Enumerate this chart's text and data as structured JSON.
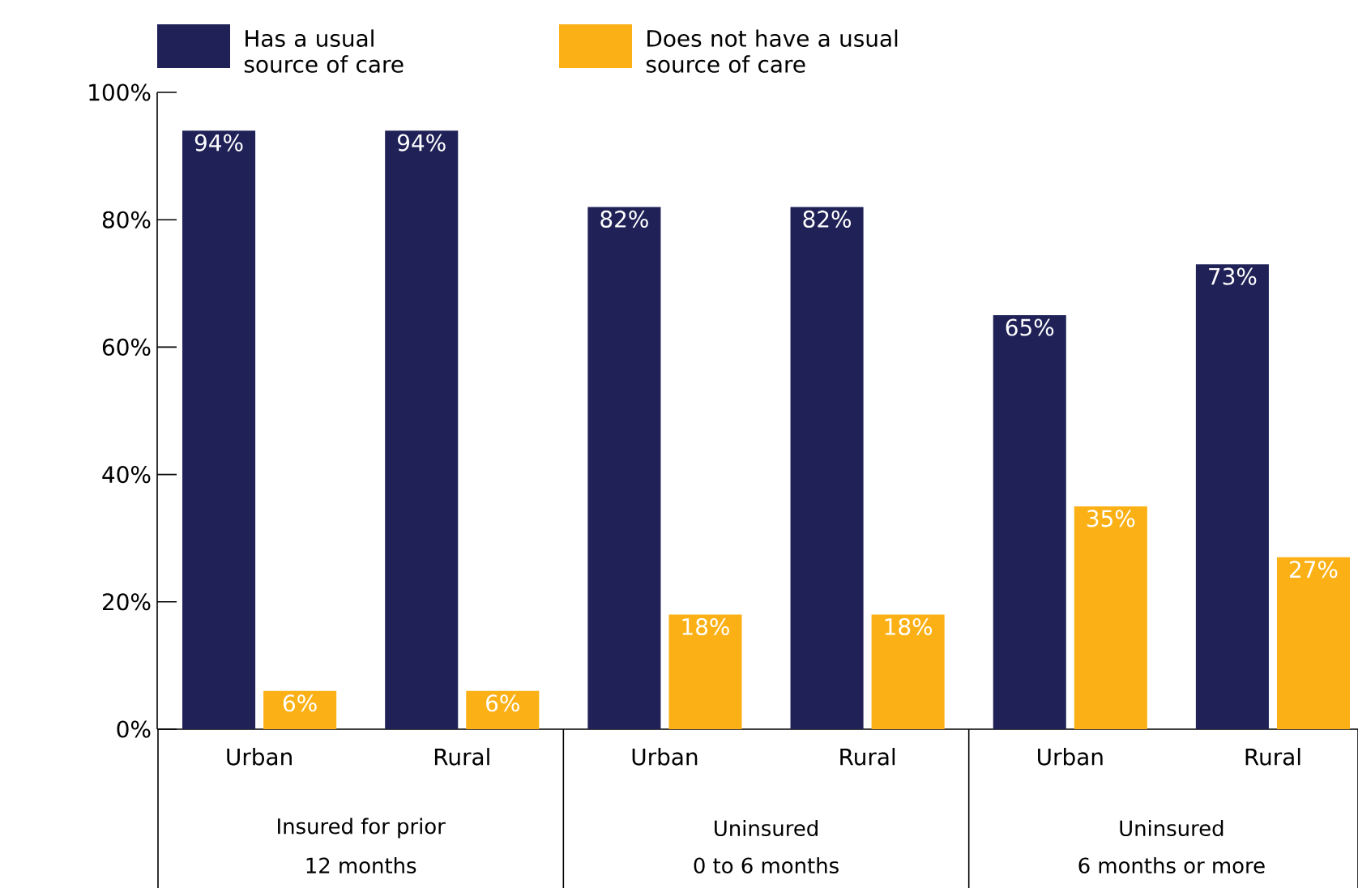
{
  "chart_data": {
    "type": "bar",
    "categories": [
      "Urban",
      "Rural",
      "Urban",
      "Rural",
      "Urban",
      "Rural"
    ],
    "series": [
      {
        "name": "Has a usual source of care",
        "color": "#1f2157",
        "values": [
          94,
          94,
          82,
          82,
          65,
          73
        ],
        "value_labels": [
          "94%",
          "94%",
          "82%",
          "82%",
          "65%",
          "73%"
        ]
      },
      {
        "name": "Does not have a usual source of care",
        "color": "#fbb116",
        "values": [
          6,
          6,
          18,
          18,
          35,
          27
        ],
        "value_labels": [
          "6%",
          "6%",
          "18%",
          "18%",
          "35%",
          "27%"
        ]
      }
    ],
    "ylim": [
      0,
      100
    ],
    "yticks": [
      {
        "value": 0,
        "label": "0%"
      },
      {
        "value": 20,
        "label": "20%"
      },
      {
        "value": 40,
        "label": "40%"
      },
      {
        "value": 60,
        "label": "60%"
      },
      {
        "value": 80,
        "label": "80%"
      },
      {
        "value": 100,
        "label": "100%"
      }
    ],
    "legend": "top left",
    "grid": false,
    "annotations": [
      "Insured for prior",
      "12 months",
      "Uninsured",
      "0 to 6 months",
      "Uninsured",
      "6 months or more"
    ]
  }
}
